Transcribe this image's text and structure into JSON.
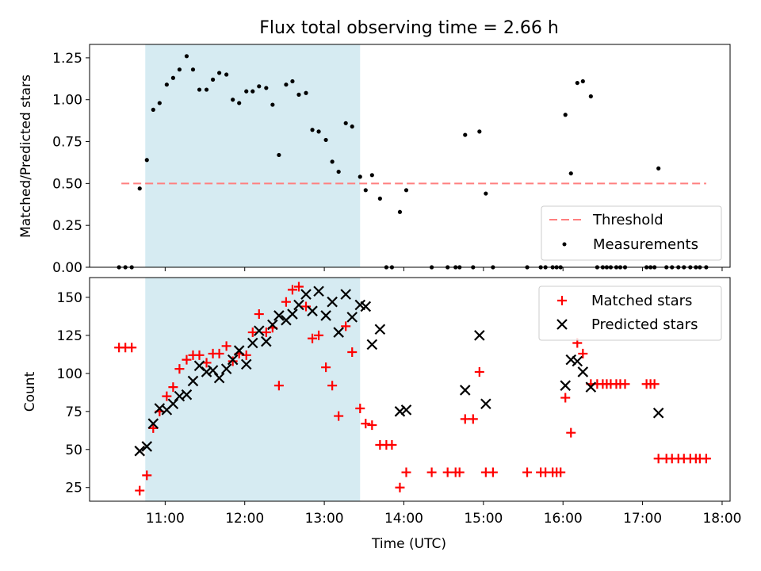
{
  "title": "Flux total observing time = 2.66 h",
  "colors": {
    "shade": "#add8e6",
    "threshold": "#ff7f7f",
    "matched": "#ff0000",
    "predicted": "#000000",
    "measurement": "#000000"
  },
  "chart_data": [
    {
      "type": "scatter",
      "ylabel": "Matched/Predicted stars",
      "ylim": [
        0,
        1.33
      ],
      "xlim_hours": [
        10.05,
        18.1
      ],
      "yticks": [
        "0.00",
        "0.25",
        "0.50",
        "0.75",
        "1.00",
        "1.25"
      ],
      "shaded_span_hours": [
        10.75,
        13.45
      ],
      "legend": "bottom-right",
      "threshold": {
        "name": "Threshold",
        "value": 0.5,
        "x_from": 10.45,
        "x_to": 17.8
      },
      "series": [
        {
          "name": "Measurements",
          "marker": "dot",
          "x": [
            10.42,
            10.5,
            10.58,
            10.68,
            10.77,
            10.85,
            10.93,
            11.02,
            11.1,
            11.18,
            11.27,
            11.35,
            11.43,
            11.52,
            11.6,
            11.68,
            11.77,
            11.85,
            11.93,
            12.02,
            12.1,
            12.18,
            12.27,
            12.35,
            12.43,
            12.52,
            12.6,
            12.68,
            12.77,
            12.85,
            12.93,
            13.02,
            13.1,
            13.18,
            13.27,
            13.35,
            13.45,
            13.52,
            13.6,
            13.7,
            13.78,
            13.85,
            13.95,
            14.03,
            14.35,
            14.55,
            14.65,
            14.7,
            14.77,
            14.87,
            14.95,
            15.03,
            15.12,
            15.55,
            15.72,
            15.78,
            15.87,
            15.92,
            15.97,
            16.03,
            16.1,
            16.18,
            16.25,
            16.35,
            16.43,
            16.5,
            16.55,
            16.6,
            16.67,
            16.72,
            16.78,
            17.05,
            17.1,
            17.15,
            17.2,
            17.3,
            17.37,
            17.45,
            17.52,
            17.6,
            17.67,
            17.72,
            17.8
          ],
          "y": [
            0,
            0,
            0,
            0.47,
            0.64,
            0.94,
            0.98,
            1.09,
            1.13,
            1.18,
            1.26,
            1.18,
            1.06,
            1.06,
            1.12,
            1.16,
            1.15,
            1.0,
            0.98,
            1.05,
            1.05,
            1.08,
            1.07,
            0.97,
            0.67,
            1.09,
            1.11,
            1.03,
            1.04,
            0.82,
            0.81,
            0.76,
            0.63,
            0.57,
            0.86,
            0.84,
            0.54,
            0.46,
            0.55,
            0.41,
            0,
            0,
            0.33,
            0.46,
            0,
            0,
            0,
            0,
            0.79,
            0,
            0.81,
            0.44,
            0,
            0,
            0,
            0,
            0,
            0,
            0,
            0.91,
            0.56,
            1.1,
            1.11,
            1.02,
            0,
            0,
            0,
            0,
            0,
            0,
            0,
            0,
            0,
            0,
            0.59,
            0,
            0,
            0,
            0,
            0,
            0,
            0,
            0
          ]
        }
      ]
    },
    {
      "type": "scatter",
      "ylabel": "Count",
      "xlabel": "Time (UTC)",
      "ylim": [
        16,
        163
      ],
      "xlim_hours": [
        10.05,
        18.1
      ],
      "yticks": [
        "25",
        "50",
        "75",
        "100",
        "125",
        "150"
      ],
      "xticks": [
        "11:00",
        "12:00",
        "13:00",
        "14:00",
        "15:00",
        "16:00",
        "17:00",
        "18:00"
      ],
      "xtick_hours": [
        11,
        12,
        13,
        14,
        15,
        16,
        17,
        18
      ],
      "shaded_span_hours": [
        10.75,
        13.45
      ],
      "legend": "top-right",
      "series": [
        {
          "name": "Matched stars",
          "marker": "plus",
          "x": [
            10.42,
            10.5,
            10.58,
            10.68,
            10.77,
            10.85,
            10.93,
            11.02,
            11.1,
            11.18,
            11.27,
            11.35,
            11.43,
            11.52,
            11.6,
            11.68,
            11.77,
            11.85,
            11.93,
            12.02,
            12.1,
            12.18,
            12.27,
            12.35,
            12.43,
            12.52,
            12.6,
            12.68,
            12.77,
            12.85,
            12.93,
            13.02,
            13.1,
            13.18,
            13.27,
            13.35,
            13.45,
            13.52,
            13.6,
            13.7,
            13.78,
            13.85,
            13.95,
            14.03,
            14.35,
            14.55,
            14.65,
            14.7,
            14.77,
            14.87,
            14.95,
            15.03,
            15.12,
            15.55,
            15.72,
            15.78,
            15.87,
            15.92,
            15.97,
            16.03,
            16.1,
            16.18,
            16.25,
            16.35,
            16.43,
            16.5,
            16.55,
            16.6,
            16.67,
            16.72,
            16.78,
            17.05,
            17.1,
            17.15,
            17.2,
            17.3,
            17.37,
            17.45,
            17.52,
            17.6,
            17.67,
            17.72,
            17.8
          ],
          "y": [
            117,
            117,
            117,
            23,
            33,
            64,
            75,
            85,
            91,
            103,
            109,
            112,
            112,
            107,
            113,
            113,
            118,
            108,
            113,
            112,
            127,
            139,
            127,
            130,
            92,
            147,
            155,
            157,
            144,
            123,
            125,
            104,
            92,
            72,
            131,
            114,
            77,
            67,
            66,
            53,
            53,
            53,
            25,
            35,
            35,
            35,
            35,
            35,
            70,
            70,
            101,
            35,
            35,
            35,
            35,
            35,
            35,
            35,
            35,
            84,
            61,
            120,
            113,
            93,
            93,
            93,
            93,
            93,
            93,
            93,
            93,
            93,
            93,
            93,
            44,
            44,
            44,
            44,
            44,
            44,
            44,
            44,
            44
          ]
        },
        {
          "name": "Predicted stars",
          "marker": "x",
          "x": [
            10.68,
            10.77,
            10.85,
            10.93,
            11.02,
            11.1,
            11.18,
            11.27,
            11.35,
            11.43,
            11.52,
            11.6,
            11.68,
            11.77,
            11.85,
            11.93,
            12.02,
            12.1,
            12.18,
            12.27,
            12.35,
            12.43,
            12.52,
            12.6,
            12.68,
            12.77,
            12.85,
            12.93,
            13.02,
            13.1,
            13.18,
            13.27,
            13.35,
            13.45,
            13.52,
            13.6,
            13.7,
            13.95,
            14.03,
            14.77,
            14.95,
            15.03,
            16.03,
            16.1,
            16.18,
            16.25,
            16.35,
            17.2
          ],
          "y": [
            49,
            52,
            67,
            77,
            76,
            80,
            85,
            86,
            95,
            105,
            101,
            102,
            97,
            103,
            109,
            115,
            106,
            120,
            128,
            121,
            132,
            138,
            135,
            139,
            145,
            152,
            141,
            154,
            138,
            147,
            127,
            152,
            137,
            145,
            144,
            119,
            129,
            75,
            76,
            89,
            125,
            80,
            92,
            109,
            108,
            101,
            91,
            74
          ]
        }
      ]
    }
  ]
}
